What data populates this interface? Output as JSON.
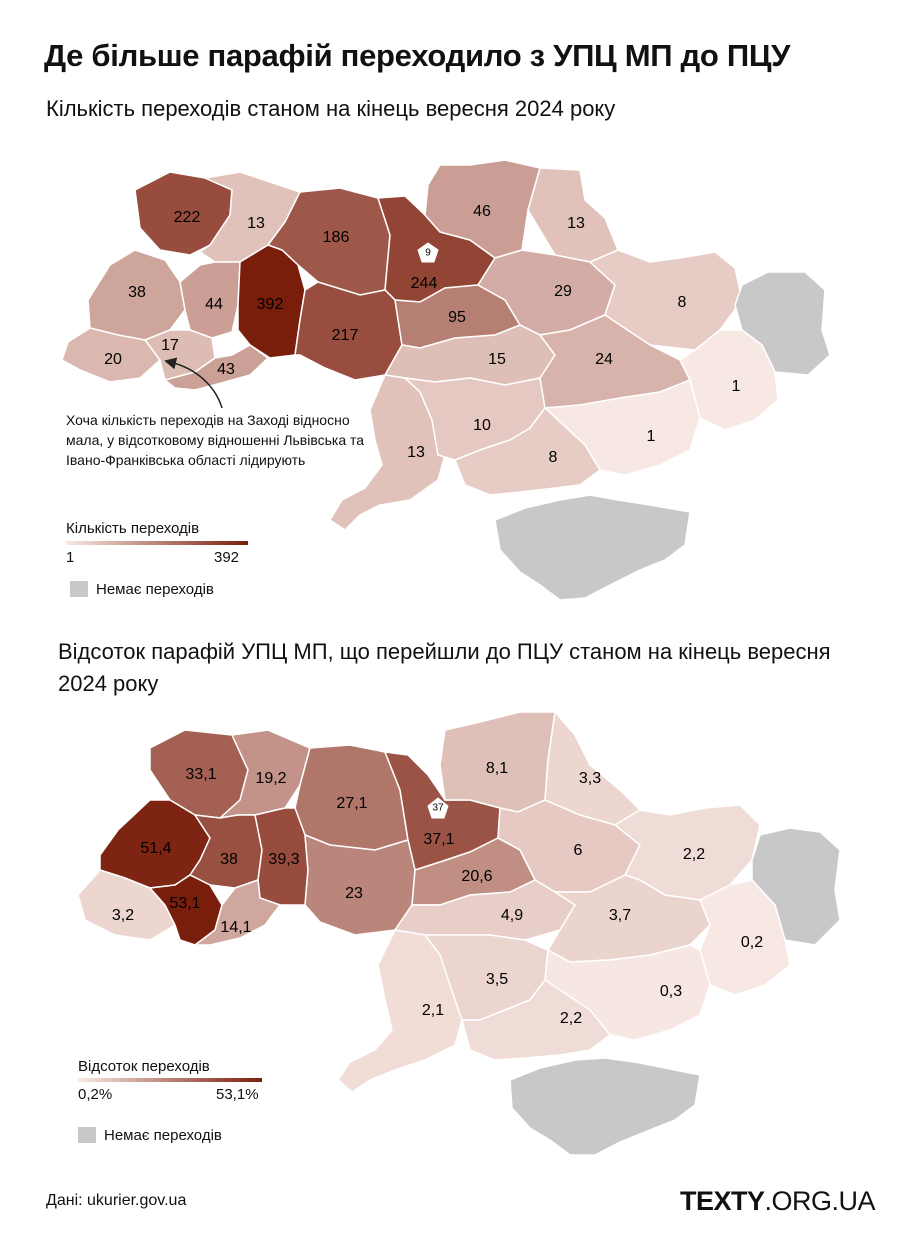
{
  "title": "Де більше парафій переходило з УПЦ МП до ПЦУ",
  "map1": {
    "subtitle": "Кількість переходів станом на кінець вересня 2024 року",
    "regions": [
      {
        "id": "volyn",
        "value": 222,
        "label": "222"
      },
      {
        "id": "rivne",
        "value": 13,
        "label": "13"
      },
      {
        "id": "zhytomyr",
        "value": 186,
        "label": "186"
      },
      {
        "id": "kyiv-oblast",
        "value": 244,
        "label": "244"
      },
      {
        "id": "kyiv-city",
        "value": 9,
        "label": "9"
      },
      {
        "id": "chernihiv",
        "value": 46,
        "label": "46"
      },
      {
        "id": "sumy",
        "value": 13,
        "label": "13"
      },
      {
        "id": "lviv",
        "value": 38,
        "label": "38"
      },
      {
        "id": "ternopil",
        "value": 44,
        "label": "44"
      },
      {
        "id": "khmelnytskyi",
        "value": 392,
        "label": "392"
      },
      {
        "id": "vinnytsia",
        "value": 217,
        "label": "217"
      },
      {
        "id": "cherkasy",
        "value": 95,
        "label": "95"
      },
      {
        "id": "poltava",
        "value": 29,
        "label": "29"
      },
      {
        "id": "kharkiv",
        "value": 8,
        "label": "8"
      },
      {
        "id": "zakarpattia",
        "value": 20,
        "label": "20"
      },
      {
        "id": "ivano-frankivsk",
        "value": 17,
        "label": "17"
      },
      {
        "id": "chernivtsi",
        "value": 43,
        "label": "43"
      },
      {
        "id": "kirovohrad",
        "value": 15,
        "label": "15"
      },
      {
        "id": "dnipro",
        "value": 24,
        "label": "24"
      },
      {
        "id": "luhansk",
        "value": 0,
        "label": ""
      },
      {
        "id": "donetsk",
        "value": 1,
        "label": "1"
      },
      {
        "id": "odesa",
        "value": 13,
        "label": "13"
      },
      {
        "id": "mykolaiv",
        "value": 10,
        "label": "10"
      },
      {
        "id": "zaporizhzhia",
        "value": 1,
        "label": "1"
      },
      {
        "id": "kherson",
        "value": 8,
        "label": "8"
      },
      {
        "id": "crimea",
        "value": 0,
        "label": ""
      }
    ],
    "annotation": "Хоча кількість переходів на Заході відносно мала, у відсотковому відношенні Львівська та Івано-Франківська області лідирують",
    "legend": {
      "title": "Кількість переходів",
      "min": "1",
      "max": "392",
      "color_low": "#f8e8e3",
      "color_high": "#7a1e0c"
    },
    "nodata_label": "Немає переходів"
  },
  "map2": {
    "subtitle": "Відсоток парафій УПЦ МП, що перейшли до ПЦУ станом на кінець вересня 2024 року",
    "regions": [
      {
        "id": "volyn",
        "value": 33.1,
        "label": "33,1"
      },
      {
        "id": "rivne",
        "value": 19.2,
        "label": "19,2"
      },
      {
        "id": "zhytomyr",
        "value": 27.1,
        "label": "27,1"
      },
      {
        "id": "kyiv-oblast",
        "value": 37.1,
        "label": "37,1"
      },
      {
        "id": "kyiv-city",
        "value": 37,
        "label": "37"
      },
      {
        "id": "chernihiv",
        "value": 8.1,
        "label": "8,1"
      },
      {
        "id": "sumy",
        "value": 3.3,
        "label": "3,3"
      },
      {
        "id": "lviv",
        "value": 51.4,
        "label": "51,4"
      },
      {
        "id": "ternopil",
        "value": 38,
        "label": "38"
      },
      {
        "id": "khmelnytskyi",
        "value": 39.3,
        "label": "39,3"
      },
      {
        "id": "vinnytsia",
        "value": 23,
        "label": "23"
      },
      {
        "id": "cherkasy",
        "value": 20.6,
        "label": "20,6"
      },
      {
        "id": "poltava",
        "value": 6,
        "label": "6"
      },
      {
        "id": "kharkiv",
        "value": 2.2,
        "label": "2,2"
      },
      {
        "id": "zakarpattia",
        "value": 3.2,
        "label": "3,2"
      },
      {
        "id": "ivano-frankivsk",
        "value": 53.1,
        "label": "53,1"
      },
      {
        "id": "chernivtsi",
        "value": 14.1,
        "label": "14,1"
      },
      {
        "id": "kirovohrad",
        "value": 4.9,
        "label": "4,9"
      },
      {
        "id": "dnipro",
        "value": 3.7,
        "label": "3,7"
      },
      {
        "id": "luhansk",
        "value": 0,
        "label": ""
      },
      {
        "id": "donetsk",
        "value": 0.2,
        "label": "0,2"
      },
      {
        "id": "odesa",
        "value": 2.1,
        "label": "2,1"
      },
      {
        "id": "mykolaiv",
        "value": 3.5,
        "label": "3,5"
      },
      {
        "id": "zaporizhzhia",
        "value": 0.3,
        "label": "0,3"
      },
      {
        "id": "kherson",
        "value": 2.2,
        "label": "2,2"
      },
      {
        "id": "crimea",
        "value": 0,
        "label": ""
      }
    ],
    "legend": {
      "title": "Відсоток переходів",
      "min": "0,2%",
      "max": "53,1%",
      "color_low": "#f8e8e3",
      "color_high": "#7a1e0c"
    },
    "nodata_label": "Немає переходів"
  },
  "colors": {
    "nodata": "#c8c8c8",
    "low": "#f8e8e3",
    "high": "#7a1e0c"
  },
  "source": "Дані: ukurier.gov.ua",
  "logo": {
    "main": "TEXTY",
    "suffix": ".ORG.UA"
  }
}
